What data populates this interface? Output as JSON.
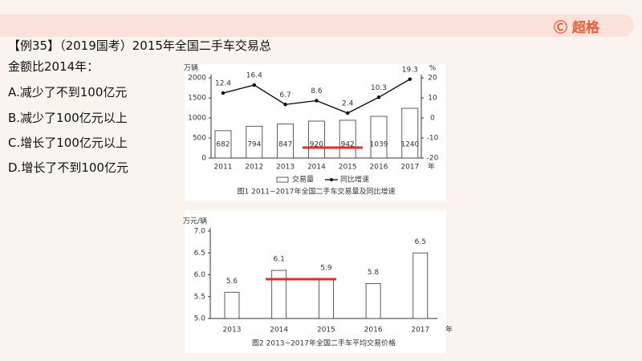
{
  "logo": "超格",
  "question": {
    "stem": [
      "【例35】（2019国考）2015年全国二手车交易总",
      "金额比2014年："
    ],
    "options": [
      "A.减少了不到100亿元",
      "B.减少了100亿元以上",
      "C.增长了100亿元以上",
      "D.增长了不到100亿元"
    ]
  },
  "chart_data": [
    {
      "type": "bar",
      "caption": "图1  2011~2017年全国二手车交易量及同比增速",
      "ylabel": "万辆",
      "y2label": "%",
      "xlabel": "年",
      "categories": [
        "2011",
        "2012",
        "2013",
        "2014",
        "2015",
        "2016",
        "2017"
      ],
      "series": [
        {
          "name": "交易量",
          "color": "#ffffff",
          "values": [
            682,
            794,
            847,
            920,
            942,
            1039,
            1240
          ]
        },
        {
          "name": "同比增速",
          "type": "line",
          "axis": "y2",
          "color": "#000000",
          "values": [
            12.4,
            16.4,
            6.7,
            8.6,
            2.4,
            10.3,
            19.3
          ]
        }
      ],
      "ylim": [
        0,
        2000
      ],
      "yticks": [
        0,
        500,
        1000,
        1500,
        2000
      ],
      "y2lim": [
        -20,
        20
      ],
      "y2ticks": [
        -20,
        -10,
        0,
        10,
        20
      ]
    },
    {
      "type": "bar",
      "caption": "图2  2013~2017年全国二手车平均交易价格",
      "ylabel": "万元/辆",
      "xlabel": "年",
      "categories": [
        "2013",
        "2014",
        "2015",
        "2016",
        "2017"
      ],
      "series": [
        {
          "color": "#ffffff",
          "values": [
            5.6,
            6.1,
            5.9,
            5.8,
            6.5
          ]
        }
      ],
      "ylim": [
        5,
        7
      ],
      "yticks": [
        {
          "value": 5,
          "label": "5.0"
        },
        {
          "value": 5.5,
          "label": "5.5"
        },
        {
          "value": 6,
          "label": "6.0"
        },
        {
          "value": 6.5,
          "label": "6.5"
        },
        {
          "value": 7,
          "label": "7.0"
        }
      ]
    }
  ]
}
